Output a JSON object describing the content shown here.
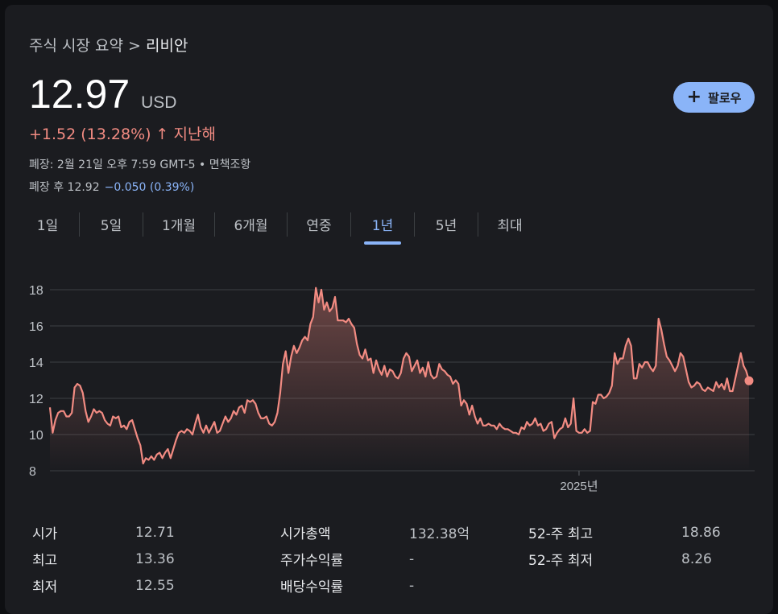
{
  "breadcrumb": {
    "parent": "주식 시장 요약",
    "separator": ">",
    "current": "리비안"
  },
  "quote": {
    "price": "12.97",
    "currency": "USD",
    "change": "+1.52 (13.28%)",
    "change_arrow": "↑",
    "period_label": "지난해",
    "closed_info": "폐장: 2월 21일 오후 7:59 GMT-5 • 면책조항",
    "after_hours_label": "폐장 후 12.92",
    "after_hours_change": "−0.050 (0.39%)"
  },
  "follow_button": {
    "icon": "plus-icon",
    "label": "팔로우"
  },
  "tabs": [
    {
      "label": "1일",
      "active": false
    },
    {
      "label": "5일",
      "active": false
    },
    {
      "label": "1개월",
      "active": false
    },
    {
      "label": "6개월",
      "active": false
    },
    {
      "label": "연중",
      "active": false
    },
    {
      "label": "1년",
      "active": true
    },
    {
      "label": "5년",
      "active": false
    },
    {
      "label": "최대",
      "active": false
    }
  ],
  "colors": {
    "line": "#f28b82",
    "accent": "#8ab4f8",
    "background": "#1b1c20"
  },
  "chart_data": {
    "type": "area",
    "ylim": [
      8,
      18
    ],
    "yticks": [
      8,
      10,
      12,
      14,
      16,
      18
    ],
    "x_tick_label": "2025년",
    "x_tick_index": 193,
    "grid": true,
    "values": [
      11.5,
      10.1,
      10.8,
      11.2,
      11.3,
      11.3,
      11.0,
      11.0,
      11.2,
      12.6,
      12.8,
      12.7,
      12.3,
      11.3,
      10.7,
      11.0,
      11.4,
      11.2,
      11.3,
      11.2,
      10.8,
      10.6,
      10.5,
      11.0,
      10.9,
      11.0,
      10.4,
      10.5,
      10.3,
      10.7,
      10.8,
      10.3,
      9.8,
      9.4,
      8.4,
      8.7,
      8.6,
      8.8,
      8.6,
      8.9,
      9.0,
      8.7,
      9.0,
      9.2,
      8.7,
      9.2,
      9.7,
      10.1,
      10.2,
      10.1,
      10.3,
      10.2,
      10.0,
      10.6,
      11.1,
      10.4,
      10.1,
      10.5,
      10.1,
      10.4,
      10.7,
      10.1,
      10.2,
      10.6,
      11.0,
      10.7,
      10.9,
      11.3,
      11.1,
      11.5,
      11.6,
      11.2,
      11.9,
      11.8,
      11.9,
      11.7,
      11.2,
      10.9,
      10.9,
      11.0,
      10.6,
      10.5,
      10.7,
      11.2,
      12.3,
      13.9,
      14.6,
      13.4,
      14.3,
      14.9,
      14.5,
      14.8,
      15.2,
      15.4,
      15.2,
      16.1,
      16.5,
      18.1,
      17.3,
      18.0,
      16.9,
      17.3,
      16.8,
      17.0,
      17.6,
      16.3,
      16.3,
      16.3,
      16.2,
      16.4,
      16.1,
      15.9,
      15.0,
      14.4,
      14.2,
      14.7,
      14.1,
      14.2,
      13.4,
      14.1,
      13.6,
      13.3,
      13.8,
      13.2,
      13.6,
      13.5,
      13.2,
      13.1,
      13.4,
      14.2,
      14.5,
      14.3,
      13.5,
      13.8,
      14.1,
      13.4,
      13.7,
      13.2,
      14.0,
      13.3,
      13.1,
      13.2,
      13.9,
      13.6,
      13.5,
      13.3,
      13.2,
      12.8,
      13.0,
      12.8,
      11.6,
      11.9,
      11.7,
      11.1,
      11.6,
      11.0,
      10.6,
      10.9,
      10.5,
      10.5,
      10.6,
      10.5,
      10.5,
      10.3,
      10.6,
      10.4,
      10.3,
      10.3,
      10.2,
      10.1,
      10.1,
      10.0,
      10.4,
      10.3,
      10.7,
      10.5,
      10.6,
      10.9,
      10.5,
      10.6,
      10.2,
      10.3,
      10.6,
      10.7,
      9.8,
      10.1,
      10.3,
      10.4,
      10.9,
      10.4,
      10.6,
      12.0,
      10.2,
      10.1,
      10.1,
      10.3,
      10.1,
      10.2,
      11.8,
      11.7,
      12.2,
      12.2,
      12.0,
      12.1,
      12.3,
      12.7,
      14.5,
      13.9,
      14.2,
      14.2,
      14.9,
      15.3,
      14.9,
      13.1,
      13.1,
      13.9,
      13.7,
      14.0,
      14.0,
      13.7,
      13.5,
      13.8,
      16.4,
      15.8,
      15.0,
      14.3,
      14.1,
      13.8,
      13.5,
      13.8,
      14.5,
      14.3,
      13.6,
      12.9,
      12.6,
      12.7,
      12.9,
      12.8,
      12.5,
      12.4,
      12.6,
      12.5,
      12.4,
      12.9,
      12.6,
      12.8,
      12.5,
      13.1,
      12.4,
      12.4,
      13.1,
      13.8,
      14.5,
      13.8,
      13.5,
      12.97
    ]
  },
  "stats": [
    {
      "label": "시가",
      "value": "12.71",
      "label2": "시가총액",
      "value2": "132.38억",
      "label3": "52-주 최고",
      "value3": "18.86"
    },
    {
      "label": "최고",
      "value": "13.36",
      "label2": "주가수익률",
      "value2": "-",
      "label3": "52-주 최저",
      "value3": "8.26"
    },
    {
      "label": "최저",
      "value": "12.55",
      "label2": "배당수익률",
      "value2": "-",
      "label3": "",
      "value3": ""
    }
  ]
}
